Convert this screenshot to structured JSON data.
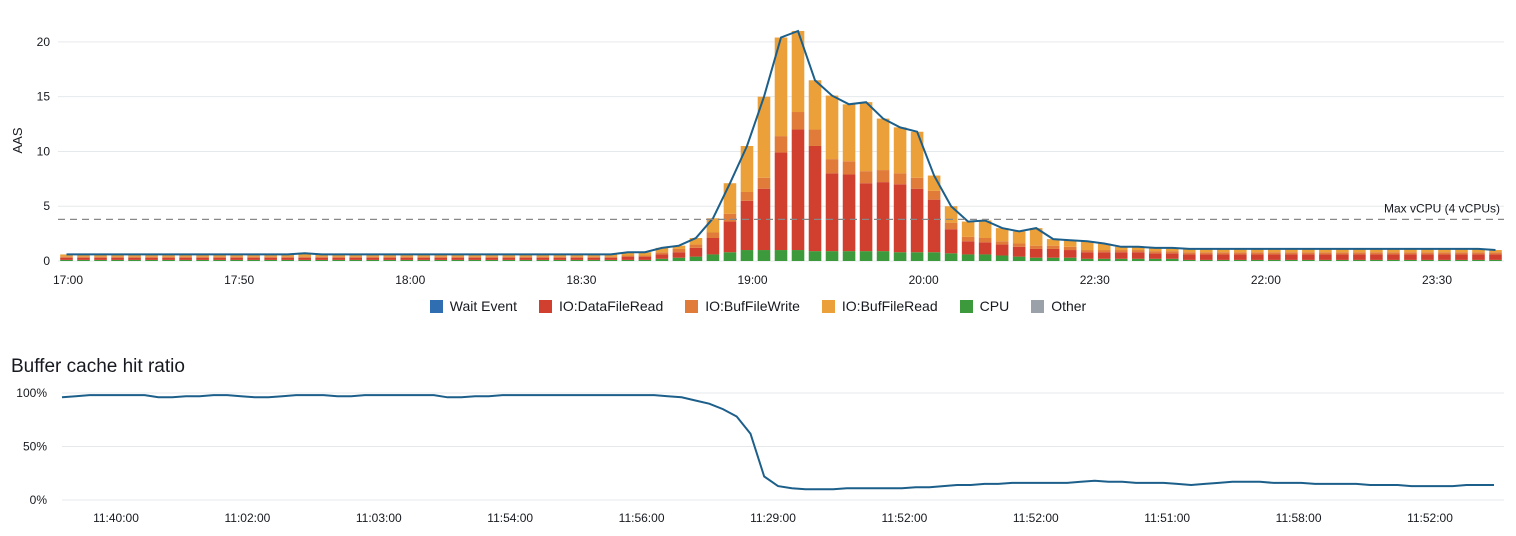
{
  "colors": {
    "wait_event": "#2f6fb1",
    "io_datafileread": "#d13f2f",
    "io_buffilewrite": "#e07b39",
    "io_buffileread": "#eca03a",
    "cpu": "#3c9a3c",
    "other": "#9aa1a9",
    "line": "#1c5f8a",
    "grid": "#e6e9ec",
    "threshold": "#888888"
  },
  "chart_data": [
    {
      "type": "bar",
      "stacked": true,
      "ylabel": "AAS",
      "ylim": [
        0,
        22
      ],
      "yticks": [
        0,
        5,
        10,
        15,
        20
      ],
      "xtick_labels": [
        "17:00",
        "17:50",
        "18:00",
        "18:30",
        "19:00",
        "20:00",
        "22:30",
        "22:00",
        "23:30"
      ],
      "threshold": {
        "value": 3.8,
        "label": "Max vCPU (4 vCPUs)"
      },
      "legend": [
        "Wait Event",
        "IO:DataFileRead",
        "IO:BufFileWrite",
        "IO:BufFileRead",
        "CPU",
        "Other"
      ],
      "series": [
        {
          "name": "CPU",
          "values": [
            0.1,
            0.1,
            0.1,
            0.1,
            0.1,
            0.1,
            0.1,
            0.1,
            0.1,
            0.1,
            0.1,
            0.1,
            0.1,
            0.1,
            0.1,
            0.1,
            0.1,
            0.1,
            0.1,
            0.1,
            0.1,
            0.1,
            0.1,
            0.1,
            0.1,
            0.1,
            0.1,
            0.1,
            0.1,
            0.1,
            0.1,
            0.1,
            0.1,
            0.1,
            0.1,
            0.2,
            0.3,
            0.4,
            0.6,
            0.8,
            1.0,
            1.0,
            1.0,
            1.0,
            0.9,
            0.9,
            0.9,
            0.9,
            0.9,
            0.8,
            0.8,
            0.8,
            0.7,
            0.6,
            0.6,
            0.5,
            0.4,
            0.3,
            0.3,
            0.3,
            0.2,
            0.2,
            0.2,
            0.2,
            0.2,
            0.2,
            0.1,
            0.1,
            0.1,
            0.1,
            0.1,
            0.1,
            0.1,
            0.1,
            0.1,
            0.1,
            0.1,
            0.1,
            0.1,
            0.1,
            0.1,
            0.1,
            0.1,
            0.1,
            0.1
          ]
        },
        {
          "name": "IO:DataFileRead",
          "values": [
            0.2,
            0.2,
            0.2,
            0.2,
            0.2,
            0.2,
            0.2,
            0.2,
            0.2,
            0.2,
            0.2,
            0.2,
            0.2,
            0.2,
            0.2,
            0.2,
            0.2,
            0.2,
            0.2,
            0.2,
            0.2,
            0.2,
            0.2,
            0.2,
            0.2,
            0.2,
            0.2,
            0.2,
            0.2,
            0.2,
            0.2,
            0.2,
            0.2,
            0.3,
            0.3,
            0.4,
            0.5,
            0.8,
            1.5,
            2.8,
            4.5,
            5.6,
            8.9,
            11.0,
            9.6,
            7.1,
            7.0,
            6.2,
            6.3,
            6.2,
            5.8,
            4.8,
            2.2,
            1.2,
            1.1,
            1.0,
            0.9,
            0.8,
            0.8,
            0.7,
            0.6,
            0.6,
            0.6,
            0.6,
            0.5,
            0.5,
            0.5,
            0.5,
            0.5,
            0.5,
            0.5,
            0.5,
            0.5,
            0.5,
            0.5,
            0.5,
            0.5,
            0.5,
            0.5,
            0.5,
            0.5,
            0.5,
            0.5,
            0.5,
            0.5
          ]
        },
        {
          "name": "IO:BufFileWrite",
          "values": [
            0.1,
            0.1,
            0.1,
            0.1,
            0.1,
            0.1,
            0.1,
            0.1,
            0.1,
            0.1,
            0.1,
            0.1,
            0.1,
            0.1,
            0.1,
            0.1,
            0.1,
            0.1,
            0.1,
            0.1,
            0.1,
            0.1,
            0.1,
            0.1,
            0.1,
            0.1,
            0.1,
            0.1,
            0.1,
            0.1,
            0.1,
            0.1,
            0.1,
            0.1,
            0.1,
            0.2,
            0.3,
            0.3,
            0.5,
            0.7,
            0.8,
            1.0,
            1.5,
            1.6,
            1.5,
            1.3,
            1.2,
            1.1,
            1.1,
            1.0,
            1.0,
            0.8,
            0.6,
            0.4,
            0.4,
            0.3,
            0.3,
            0.3,
            0.3,
            0.3,
            0.2,
            0.2,
            0.2,
            0.2,
            0.2,
            0.2,
            0.2,
            0.2,
            0.2,
            0.2,
            0.2,
            0.2,
            0.2,
            0.2,
            0.2,
            0.2,
            0.2,
            0.2,
            0.2,
            0.2,
            0.2,
            0.2,
            0.2,
            0.2,
            0.2
          ]
        },
        {
          "name": "IO:BufFileRead",
          "values": [
            0.2,
            0.2,
            0.2,
            0.2,
            0.2,
            0.2,
            0.2,
            0.2,
            0.2,
            0.2,
            0.2,
            0.2,
            0.2,
            0.2,
            0.3,
            0.2,
            0.2,
            0.2,
            0.2,
            0.2,
            0.2,
            0.2,
            0.2,
            0.2,
            0.2,
            0.2,
            0.2,
            0.2,
            0.2,
            0.2,
            0.2,
            0.2,
            0.2,
            0.3,
            0.3,
            0.4,
            0.3,
            0.6,
            1.3,
            2.8,
            4.2,
            7.4,
            9.0,
            7.4,
            4.5,
            5.8,
            5.2,
            6.3,
            4.7,
            4.2,
            4.2,
            1.4,
            1.5,
            1.4,
            1.6,
            1.2,
            1.1,
            1.6,
            0.6,
            0.6,
            0.8,
            0.6,
            0.3,
            0.3,
            0.3,
            0.3,
            0.3,
            0.3,
            0.3,
            0.3,
            0.3,
            0.3,
            0.3,
            0.3,
            0.3,
            0.3,
            0.3,
            0.3,
            0.3,
            0.3,
            0.3,
            0.3,
            0.3,
            0.3,
            0.2
          ]
        }
      ],
      "total_line": [
        0.6,
        0.6,
        0.6,
        0.6,
        0.6,
        0.6,
        0.6,
        0.6,
        0.6,
        0.6,
        0.6,
        0.6,
        0.6,
        0.6,
        0.7,
        0.6,
        0.6,
        0.6,
        0.6,
        0.6,
        0.6,
        0.6,
        0.6,
        0.6,
        0.6,
        0.6,
        0.6,
        0.6,
        0.6,
        0.6,
        0.6,
        0.6,
        0.6,
        0.8,
        0.8,
        1.2,
        1.4,
        2.1,
        3.9,
        7.1,
        10.5,
        15.0,
        20.4,
        21.0,
        16.5,
        15.1,
        14.3,
        14.5,
        13.0,
        12.2,
        11.8,
        7.8,
        5.0,
        3.6,
        3.7,
        3.0,
        2.7,
        3.0,
        2.0,
        1.9,
        1.8,
        1.6,
        1.3,
        1.3,
        1.2,
        1.2,
        1.1,
        1.1,
        1.1,
        1.1,
        1.1,
        1.1,
        1.1,
        1.1,
        1.1,
        1.1,
        1.1,
        1.1,
        1.1,
        1.1,
        1.1,
        1.1,
        1.1,
        1.1,
        1.0
      ]
    },
    {
      "type": "line",
      "title": "Buffer cache hit ratio",
      "ylim": [
        0,
        100
      ],
      "ytick_labels": [
        "0%",
        "50%",
        "100%"
      ],
      "yticks": [
        0,
        50,
        100
      ],
      "xtick_labels": [
        "11:40:00",
        "11:02:00",
        "11:03:00",
        "11:54:00",
        "11:56:00",
        "11:29:00",
        "11:52:00",
        "11:52:00",
        "11:51:00",
        "11:58:00",
        "11:52:00"
      ],
      "values": [
        96,
        97,
        98,
        98,
        98,
        98,
        98,
        96,
        96,
        97,
        97,
        98,
        98,
        97,
        96,
        96,
        97,
        98,
        98,
        98,
        97,
        97,
        98,
        98,
        98,
        98,
        98,
        98,
        96,
        96,
        97,
        97,
        98,
        98,
        98,
        98,
        98,
        98,
        98,
        98,
        98,
        98,
        98,
        98,
        97,
        96,
        93,
        90,
        85,
        78,
        62,
        22,
        13,
        11,
        10,
        10,
        10,
        11,
        11,
        11,
        11,
        11,
        12,
        12,
        13,
        14,
        14,
        15,
        15,
        16,
        16,
        16,
        16,
        16,
        17,
        18,
        17,
        17,
        16,
        16,
        16,
        15,
        14,
        15,
        16,
        17,
        17,
        17,
        16,
        16,
        16,
        15,
        15,
        15,
        15,
        14,
        14,
        14,
        13,
        13,
        13,
        13,
        14,
        14,
        14
      ]
    }
  ]
}
